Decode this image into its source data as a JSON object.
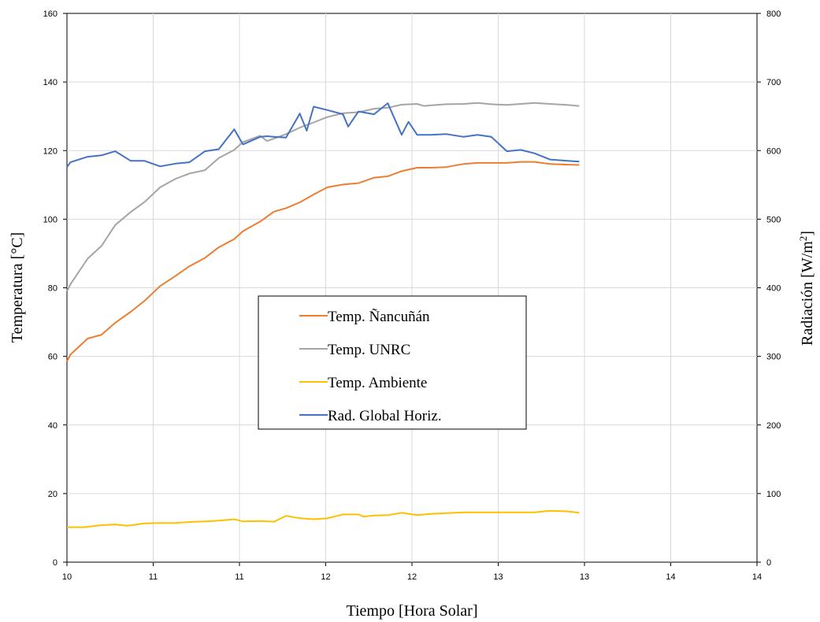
{
  "chart_data": {
    "type": "line",
    "xlabel": "Tiempo [Hora Solar]",
    "ylabel_left": "Temperatura [°C]",
    "ylabel_right": {
      "main": "Radiación [W/m",
      "sup": "2",
      "end": "]"
    },
    "x_range": [
      10,
      14
    ],
    "x_ticks": [
      {
        "v": 10.0,
        "label": "10"
      },
      {
        "v": 10.5,
        "label": "11"
      },
      {
        "v": 11.0,
        "label": "11"
      },
      {
        "v": 11.5,
        "label": "12"
      },
      {
        "v": 12.0,
        "label": "12"
      },
      {
        "v": 12.5,
        "label": "13"
      },
      {
        "v": 13.0,
        "label": "13"
      },
      {
        "v": 13.5,
        "label": "14"
      },
      {
        "v": 14.0,
        "label": "14"
      }
    ],
    "y_left": {
      "range": [
        0,
        160
      ],
      "ticks": [
        "0",
        "20",
        "40",
        "60",
        "80",
        "100",
        "120",
        "140",
        "160"
      ]
    },
    "y_right": {
      "range": [
        0,
        800
      ],
      "ticks": [
        "0",
        "100",
        "200",
        "300",
        "400",
        "500",
        "600",
        "700",
        "800"
      ]
    },
    "grid": true,
    "legend": {
      "position": "center",
      "order": [
        0,
        1,
        2,
        3
      ]
    },
    "series": [
      {
        "name": "Temp. Ñancuñán",
        "color": "#ED7D31",
        "axis": "left",
        "points": [
          [
            10.0,
            58.5
          ],
          [
            10.02,
            60.5
          ],
          [
            10.12,
            65.2
          ],
          [
            10.2,
            66.3
          ],
          [
            10.28,
            69.8
          ],
          [
            10.37,
            73
          ],
          [
            10.45,
            76.2
          ],
          [
            10.54,
            80.5
          ],
          [
            10.63,
            83.5
          ],
          [
            10.71,
            86.3
          ],
          [
            10.8,
            88.7
          ],
          [
            10.88,
            91.8
          ],
          [
            10.97,
            94.2
          ],
          [
            11.02,
            96.5
          ],
          [
            11.12,
            99.3
          ],
          [
            11.2,
            102.2
          ],
          [
            11.27,
            103.2
          ],
          [
            11.35,
            104.9
          ],
          [
            11.43,
            107.2
          ],
          [
            11.51,
            109.3
          ],
          [
            11.6,
            110.1
          ],
          [
            11.69,
            110.5
          ],
          [
            11.78,
            112.1
          ],
          [
            11.86,
            112.5
          ],
          [
            11.94,
            114
          ],
          [
            12.03,
            115
          ],
          [
            12.11,
            115
          ],
          [
            12.2,
            115.2
          ],
          [
            12.3,
            116.1
          ],
          [
            12.38,
            116.4
          ],
          [
            12.46,
            116.4
          ],
          [
            12.55,
            116.4
          ],
          [
            12.63,
            116.7
          ],
          [
            12.71,
            116.7
          ],
          [
            12.8,
            116.1
          ],
          [
            12.9,
            115.9
          ],
          [
            12.97,
            115.8
          ]
        ]
      },
      {
        "name": "Temp. UNRC",
        "color": "#A5A5A5",
        "axis": "left",
        "points": [
          [
            10.0,
            79
          ],
          [
            10.02,
            81
          ],
          [
            10.12,
            88.5
          ],
          [
            10.2,
            92.2
          ],
          [
            10.28,
            98.3
          ],
          [
            10.37,
            102.1
          ],
          [
            10.45,
            105
          ],
          [
            10.54,
            109.3
          ],
          [
            10.63,
            111.8
          ],
          [
            10.71,
            113.3
          ],
          [
            10.8,
            114.3
          ],
          [
            10.88,
            117.8
          ],
          [
            10.97,
            120.2
          ],
          [
            11.02,
            122.5
          ],
          [
            11.12,
            124.3
          ],
          [
            11.16,
            122.8
          ],
          [
            11.2,
            123.5
          ],
          [
            11.27,
            124.8
          ],
          [
            11.35,
            126.7
          ],
          [
            11.43,
            128.2
          ],
          [
            11.51,
            129.8
          ],
          [
            11.6,
            130.9
          ],
          [
            11.69,
            131.2
          ],
          [
            11.78,
            132.2
          ],
          [
            11.86,
            132.5
          ],
          [
            11.94,
            133.4
          ],
          [
            12.03,
            133.6
          ],
          [
            12.07,
            133
          ],
          [
            12.11,
            133.2
          ],
          [
            12.2,
            133.5
          ],
          [
            12.3,
            133.6
          ],
          [
            12.38,
            133.9
          ],
          [
            12.46,
            133.5
          ],
          [
            12.55,
            133.3
          ],
          [
            12.63,
            133.6
          ],
          [
            12.71,
            133.9
          ],
          [
            12.8,
            133.6
          ],
          [
            12.9,
            133.3
          ],
          [
            12.97,
            133
          ]
        ]
      },
      {
        "name": "Temp. Ambiente",
        "color": "#FFC000",
        "axis": "left",
        "points": [
          [
            10.0,
            10.2
          ],
          [
            10.1,
            10.2
          ],
          [
            10.2,
            10.8
          ],
          [
            10.28,
            11
          ],
          [
            10.35,
            10.6
          ],
          [
            10.45,
            11.3
          ],
          [
            10.54,
            11.4
          ],
          [
            10.63,
            11.4
          ],
          [
            10.71,
            11.7
          ],
          [
            10.8,
            11.9
          ],
          [
            10.88,
            12.1
          ],
          [
            10.97,
            12.5
          ],
          [
            11.02,
            11.9
          ],
          [
            11.12,
            12
          ],
          [
            11.2,
            11.8
          ],
          [
            11.27,
            13.5
          ],
          [
            11.35,
            12.8
          ],
          [
            11.43,
            12.5
          ],
          [
            11.51,
            12.8
          ],
          [
            11.6,
            13.9
          ],
          [
            11.69,
            13.9
          ],
          [
            11.72,
            13.3
          ],
          [
            11.78,
            13.6
          ],
          [
            11.86,
            13.7
          ],
          [
            11.94,
            14.4
          ],
          [
            12.03,
            13.7
          ],
          [
            12.11,
            14.1
          ],
          [
            12.2,
            14.3
          ],
          [
            12.3,
            14.5
          ],
          [
            12.38,
            14.5
          ],
          [
            12.46,
            14.5
          ],
          [
            12.55,
            14.5
          ],
          [
            12.63,
            14.5
          ],
          [
            12.71,
            14.5
          ],
          [
            12.8,
            15
          ],
          [
            12.9,
            14.8
          ],
          [
            12.97,
            14.4
          ]
        ]
      },
      {
        "name": "Rad. Global Horiz.",
        "color": "#4472C4",
        "axis": "right",
        "points": [
          [
            10.0,
            576
          ],
          [
            10.02,
            583
          ],
          [
            10.12,
            591
          ],
          [
            10.2,
            593
          ],
          [
            10.28,
            599
          ],
          [
            10.37,
            585
          ],
          [
            10.45,
            585
          ],
          [
            10.54,
            577
          ],
          [
            10.63,
            581
          ],
          [
            10.71,
            583
          ],
          [
            10.8,
            599
          ],
          [
            10.88,
            602
          ],
          [
            10.97,
            631
          ],
          [
            11.02,
            609
          ],
          [
            11.12,
            620
          ],
          [
            11.16,
            621
          ],
          [
            11.2,
            620
          ],
          [
            11.27,
            619
          ],
          [
            11.35,
            654
          ],
          [
            11.39,
            629
          ],
          [
            11.43,
            664
          ],
          [
            11.51,
            659
          ],
          [
            11.6,
            653
          ],
          [
            11.63,
            635
          ],
          [
            11.69,
            657
          ],
          [
            11.78,
            653
          ],
          [
            11.86,
            669
          ],
          [
            11.94,
            623
          ],
          [
            11.98,
            642
          ],
          [
            12.03,
            623
          ],
          [
            12.11,
            623
          ],
          [
            12.2,
            624
          ],
          [
            12.3,
            620
          ],
          [
            12.38,
            623
          ],
          [
            12.46,
            620
          ],
          [
            12.55,
            599
          ],
          [
            12.63,
            601
          ],
          [
            12.71,
            596
          ],
          [
            12.8,
            587
          ],
          [
            12.9,
            585
          ],
          [
            12.97,
            584
          ]
        ]
      }
    ]
  }
}
